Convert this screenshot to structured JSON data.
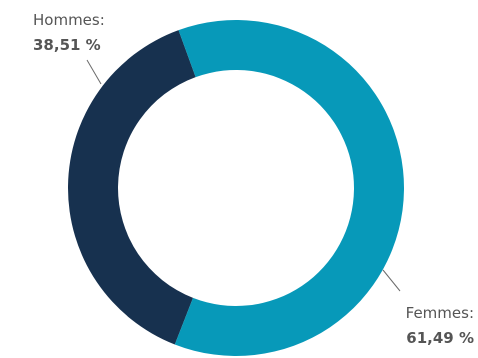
{
  "chart_data": {
    "type": "pie",
    "style": "donut",
    "slices": [
      {
        "label": "Hommes:",
        "value": 38.51,
        "display": "38,51 %",
        "color": "#17314f"
      },
      {
        "label": "Femmes:",
        "value": 61.49,
        "display": "61,49 %",
        "color": "#0799b9"
      }
    ],
    "label_color": "#555555",
    "leader_color": "#6b6b6b"
  }
}
